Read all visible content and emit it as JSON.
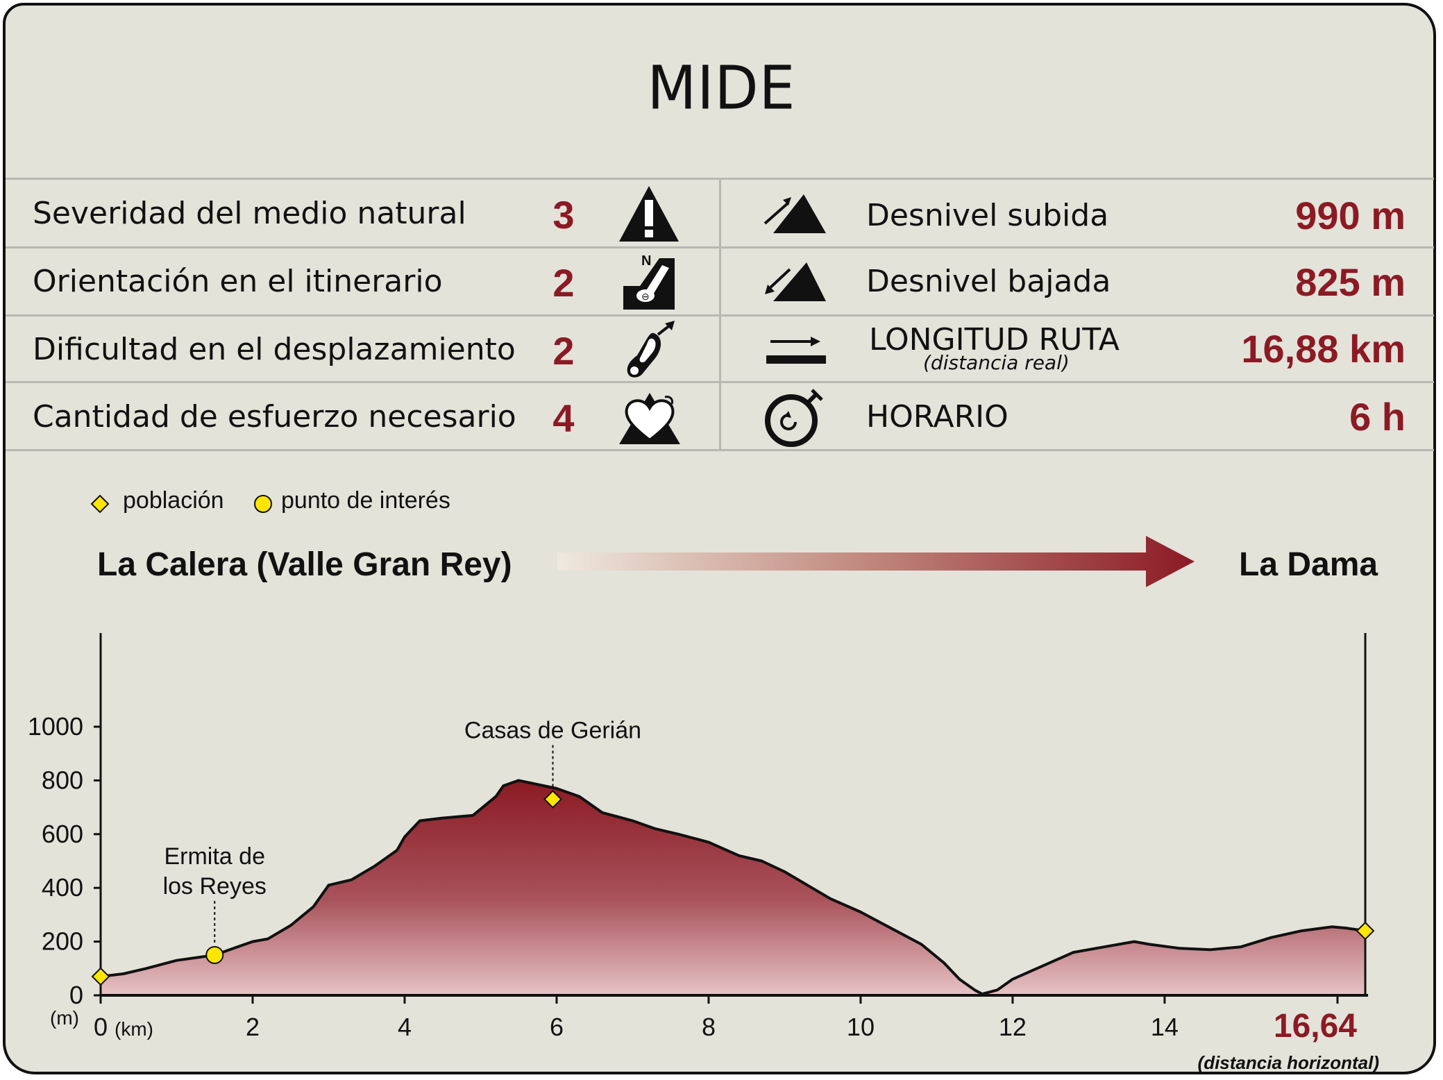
{
  "title": "MIDE",
  "rows": [
    {
      "label": "Severidad del medio natural",
      "value": "3",
      "icon": "warning-triangle-icon"
    },
    {
      "label": "Orientación en el itinerario",
      "value": "2",
      "icon": "compass-orientation-icon"
    },
    {
      "label": "Dificultad en el desplazamiento",
      "value": "2",
      "icon": "footprint-icon"
    },
    {
      "label": "Cantidad de esfuerzo necesario",
      "value": "4",
      "icon": "heart-mountain-icon"
    }
  ],
  "stats": [
    {
      "label": "Desnivel subida",
      "value": "990 m",
      "icon": "ascent-icon"
    },
    {
      "label": "Desnivel bajada",
      "value": "825 m",
      "icon": "descent-icon"
    },
    {
      "label": "LONGITUD RUTA",
      "sublabel": "(distancia real)",
      "value": "16,88 km",
      "icon": "route-length-icon"
    },
    {
      "label": "HORARIO",
      "value": "6 h",
      "icon": "stopwatch-icon"
    }
  ],
  "legend": {
    "town": "población",
    "poi": "punto de interés"
  },
  "route": {
    "start": "La Calera (Valle Gran Rey)",
    "end": "La Dama"
  },
  "colors": {
    "accent": "#8b1a24",
    "marker": "#ffe600",
    "background": "#e3e3da"
  },
  "chart_data": {
    "type": "area",
    "ylabel": "(m)",
    "xlabel_unit": "(km)",
    "x_end_label": "16,64",
    "x_end_caption": "(distancia horizontal)",
    "xlim": [
      0,
      16.64
    ],
    "ylim": [
      0,
      1000
    ],
    "y_ticks": [
      0,
      200,
      400,
      600,
      800,
      1000
    ],
    "x_ticks": [
      0,
      2,
      4,
      6,
      8,
      10,
      12,
      14
    ],
    "x": [
      0,
      0.3,
      0.6,
      1.0,
      1.5,
      1.8,
      2.0,
      2.2,
      2.5,
      2.8,
      3.0,
      3.3,
      3.6,
      3.9,
      4.0,
      4.2,
      4.5,
      4.9,
      5.2,
      5.3,
      5.5,
      6.0,
      6.3,
      6.6,
      7.0,
      7.3,
      7.6,
      8.0,
      8.4,
      8.7,
      9.0,
      9.3,
      9.6,
      10.0,
      10.4,
      10.8,
      11.1,
      11.3,
      11.5,
      11.6,
      11.8,
      12.0,
      12.4,
      12.8,
      13.2,
      13.6,
      13.8,
      14.2,
      14.6,
      15.0,
      15.4,
      15.8,
      16.2,
      16.4,
      16.64
    ],
    "y": [
      70,
      80,
      100,
      130,
      150,
      180,
      200,
      210,
      260,
      330,
      410,
      430,
      480,
      540,
      590,
      650,
      660,
      670,
      740,
      780,
      800,
      770,
      740,
      680,
      650,
      620,
      600,
      570,
      520,
      500,
      460,
      410,
      360,
      310,
      250,
      190,
      120,
      60,
      20,
      5,
      20,
      60,
      110,
      160,
      180,
      200,
      190,
      175,
      170,
      180,
      215,
      240,
      255,
      250,
      240
    ],
    "points_of_interest": [
      {
        "name": "",
        "type": "población",
        "x": 0,
        "y": 70
      },
      {
        "name": "Ermita de los Reyes",
        "type": "punto de interés",
        "x": 1.5,
        "y": 150
      },
      {
        "name": "Casas de Gerián",
        "type": "población",
        "x": 5.95,
        "y": 730
      },
      {
        "name": "",
        "type": "población",
        "x": 16.64,
        "y": 240
      }
    ]
  }
}
